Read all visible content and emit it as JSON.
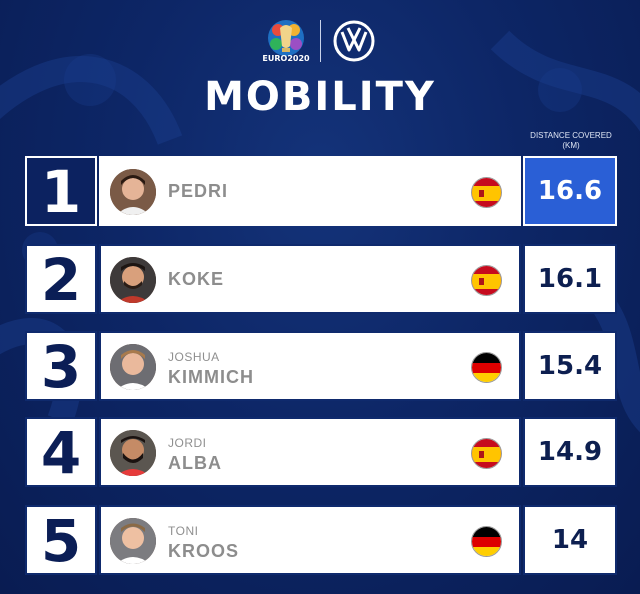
{
  "header": {
    "euro_text": "EURO2020",
    "title": "MOBILITY",
    "column_label_line1": "DISTANCE COVERED",
    "column_label_line2": "(KM)"
  },
  "colors": {
    "background": "#0d2666",
    "highlight": "#2a5fd6",
    "border": "#0f2a6d"
  },
  "players": [
    {
      "rank": "1",
      "first_name": "",
      "last_name": "PEDRI",
      "country": "spain",
      "distance": "16.6"
    },
    {
      "rank": "2",
      "first_name": "",
      "last_name": "KOKE",
      "country": "spain",
      "distance": "16.1"
    },
    {
      "rank": "3",
      "first_name": "JOSHUA",
      "last_name": "KIMMICH",
      "country": "germany",
      "distance": "15.4"
    },
    {
      "rank": "4",
      "first_name": "JORDI",
      "last_name": "ALBA",
      "country": "spain",
      "distance": "14.9"
    },
    {
      "rank": "5",
      "first_name": "TONI",
      "last_name": "KROOS",
      "country": "germany",
      "distance": "14"
    }
  ]
}
